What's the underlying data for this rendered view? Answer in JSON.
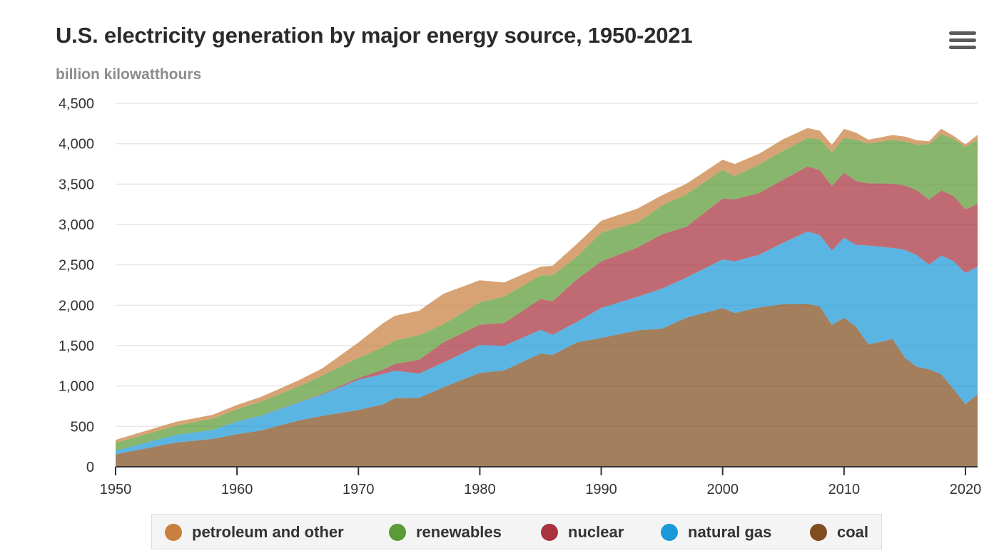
{
  "header": {
    "title": "U.S. electricity generation by major energy source, 1950-2021",
    "subtitle": "billion kilowatthours",
    "menu_icon": "hamburger-menu-icon"
  },
  "legend": {
    "items": [
      {
        "key": "petroleum",
        "label": "petroleum and other",
        "color": "#c97f3f"
      },
      {
        "key": "renewables",
        "label": "renewables",
        "color": "#5b9a35"
      },
      {
        "key": "nuclear",
        "label": "nuclear",
        "color": "#a8323e"
      },
      {
        "key": "gas",
        "label": "natural gas",
        "color": "#1a98d8"
      },
      {
        "key": "coal",
        "label": "coal",
        "color": "#7f4d1e"
      }
    ]
  },
  "chart_data": {
    "type": "area",
    "stacked": true,
    "title": "U.S. electricity generation by major energy source, 1950-2021",
    "subtitle": "billion kilowatthours",
    "xlim": [
      1950,
      2021
    ],
    "ylim": [
      0,
      4500
    ],
    "x_ticks": [
      1950,
      1960,
      1970,
      1980,
      1990,
      2000,
      2010,
      2020
    ],
    "y_ticks": [
      0,
      500,
      1000,
      1500,
      2000,
      2500,
      3000,
      3500,
      4000,
      4500
    ],
    "y_tick_labels": [
      "0",
      "500",
      "1,000",
      "1,500",
      "2,000",
      "2,500",
      "3,000",
      "3,500",
      "4,000",
      "4,500"
    ],
    "grid": true,
    "legend_position": "bottom",
    "x": [
      1950,
      1955,
      1958,
      1960,
      1962,
      1965,
      1967,
      1970,
      1972,
      1973,
      1975,
      1977,
      1980,
      1982,
      1985,
      1986,
      1988,
      1990,
      1993,
      1995,
      1997,
      2000,
      2001,
      2003,
      2005,
      2007,
      2008,
      2009,
      2010,
      2011,
      2012,
      2014,
      2015,
      2016,
      2017,
      2018,
      2019,
      2020,
      2021
    ],
    "series": [
      {
        "name": "coal",
        "color": "#7f4d1e",
        "values": [
          154,
          301,
          345,
          403,
          450,
          570,
          630,
          704,
          771,
          848,
          853,
          985,
          1162,
          1193,
          1402,
          1386,
          1541,
          1594,
          1690,
          1709,
          1845,
          1966,
          1904,
          1974,
          2013,
          2016,
          1986,
          1756,
          1847,
          1733,
          1514,
          1582,
          1352,
          1239,
          1206,
          1146,
          965,
          774,
          898
        ]
      },
      {
        "name": "natural gas",
        "color": "#1a98d8",
        "values": [
          45,
          95,
          110,
          158,
          184,
          222,
          264,
          373,
          376,
          341,
          300,
          305,
          346,
          305,
          292,
          249,
          253,
          373,
          415,
          496,
          497,
          601,
          639,
          650,
          761,
          897,
          883,
          921,
          988,
          1014,
          1226,
          1127,
          1335,
          1379,
          1296,
          1469,
          1582,
          1624,
          1579
        ]
      },
      {
        "name": "nuclear",
        "color": "#a8323e",
        "values": [
          0,
          0,
          0,
          1,
          2,
          4,
          8,
          22,
          54,
          83,
          173,
          251,
          251,
          283,
          384,
          414,
          527,
          577,
          610,
          673,
          629,
          754,
          769,
          764,
          782,
          806,
          806,
          799,
          807,
          790,
          769,
          797,
          797,
          806,
          805,
          807,
          809,
          790,
          778
        ]
      },
      {
        "name": "renewables",
        "color": "#5b9a35",
        "values": [
          100,
          114,
          142,
          149,
          172,
          194,
          225,
          250,
          280,
          291,
          304,
          224,
          279,
          327,
          293,
          322,
          281,
          357,
          311,
          357,
          401,
          356,
          288,
          355,
          358,
          352,
          380,
          419,
          427,
          513,
          492,
          544,
          544,
          564,
          687,
          697,
          706,
          773,
          793
        ]
      },
      {
        "name": "petroleum and other",
        "color": "#c97f3f",
        "values": [
          34,
          48,
          47,
          55,
          59,
          75,
          88,
          191,
          293,
          307,
          302,
          377,
          271,
          174,
          106,
          118,
          157,
          145,
          172,
          127,
          131,
          125,
          149,
          133,
          142,
          124,
          106,
          92,
          115,
          86,
          49,
          57,
          61,
          56,
          37,
          67,
          37,
          30,
          63
        ]
      }
    ]
  }
}
